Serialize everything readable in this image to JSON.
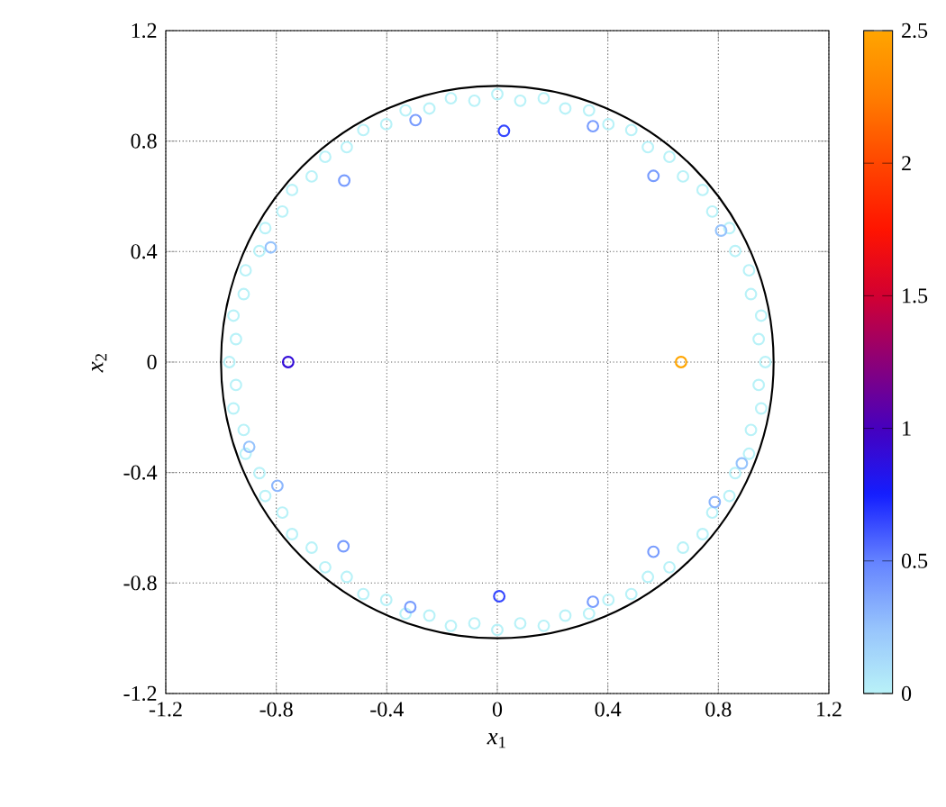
{
  "chart_data": {
    "type": "scatter",
    "xlabel": "*x*$_{1}$",
    "ylabel": "*x*$_{2}$",
    "xlim": [
      -1.2,
      1.2
    ],
    "ylim": [
      -1.2,
      1.2
    ],
    "xticks": [
      -1.2,
      -0.8,
      -0.4,
      0,
      0.4,
      0.8,
      1.2
    ],
    "yticks": [
      -1.2,
      -0.8,
      -0.4,
      0,
      0.4,
      0.8,
      1.2
    ],
    "clim": [
      0,
      2.5
    ],
    "cticks": [
      0,
      0.5,
      1,
      1.5,
      2,
      2.5
    ],
    "grid": true,
    "series": [
      {
        "marker": "circle",
        "x": [
          0.97,
          0.946,
          0.955,
          0.918,
          0.911,
          0.861,
          0.84,
          0.778,
          0.743,
          0.672,
          0.623,
          0.545,
          0.485,
          0.402,
          0.332,
          0.246,
          0.168,
          0.083,
          0,
          -0.083,
          -0.168,
          -0.246,
          -0.332,
          -0.402,
          -0.485,
          -0.545,
          -0.623,
          -0.672,
          -0.743,
          -0.778,
          -0.84,
          -0.861,
          -0.911,
          -0.918,
          -0.955,
          -0.946,
          -0.97,
          -0.946,
          -0.955,
          -0.918,
          -0.911,
          -0.861,
          -0.84,
          -0.778,
          -0.743,
          -0.672,
          -0.623,
          -0.545,
          -0.485,
          -0.402,
          -0.332,
          -0.246,
          -0.168,
          -0.083,
          0,
          0.083,
          0.168,
          0.246,
          0.332,
          0.402,
          0.485,
          0.545,
          0.623,
          0.672,
          0.743,
          0.778,
          0.84,
          0.861,
          0.911,
          0.918,
          0.955,
          0.946,
          -0.82,
          0.81,
          -0.898,
          -0.796,
          0.787,
          0.885,
          -0.554,
          -0.296,
          0.346,
          0.565,
          -0.557,
          -0.315,
          0.346,
          0.565,
          0.024,
          0.007,
          -0.757,
          0.665
        ],
        "values": [
          0,
          0.083,
          0.168,
          0.246,
          0.332,
          0.402,
          0.485,
          0.545,
          0.623,
          0.672,
          0.743,
          0.778,
          0.84,
          0.861,
          0.911,
          0.918,
          0.955,
          0.946,
          0.97,
          0.946,
          0.955,
          0.918,
          0.911,
          0.861,
          0.84,
          0.778,
          0.743,
          0.672,
          0.623,
          0.545,
          0.485,
          0.402,
          0.332,
          0.246,
          0.168,
          0.083,
          0,
          -0.083,
          -0.168,
          -0.246,
          -0.332,
          -0.402,
          -0.485,
          -0.545,
          -0.623,
          -0.672,
          -0.743,
          -0.778,
          -0.84,
          -0.861,
          -0.911,
          -0.918,
          -0.955,
          -0.946,
          -0.97,
          -0.946,
          -0.955,
          -0.918,
          -0.911,
          -0.861,
          -0.84,
          -0.778,
          -0.743,
          -0.672,
          -0.623,
          -0.545,
          -0.485,
          -0.402,
          -0.332,
          -0.246,
          -0.168,
          -0.083,
          0.415,
          0.476,
          -0.307,
          -0.448,
          -0.507,
          -0.367,
          0.657,
          0.876,
          0.854,
          0.674,
          -0.667,
          -0.887,
          -0.868,
          -0.687,
          0.837,
          -0.848,
          0,
          0
        ],
        "cvalues": [
          0,
          0,
          0,
          0,
          0,
          0,
          0,
          0,
          0,
          0,
          0,
          0,
          0,
          0,
          0,
          0,
          0,
          0,
          0,
          0,
          0,
          0,
          0,
          0,
          0,
          0,
          0,
          0,
          0,
          0,
          0,
          0,
          0,
          0,
          0,
          0,
          0,
          0,
          0,
          0,
          0,
          0,
          0,
          0,
          0,
          0,
          0,
          0,
          0,
          0,
          0,
          0,
          0,
          0,
          0,
          0,
          0,
          0,
          0,
          0,
          0,
          0,
          0,
          0,
          0,
          0,
          0,
          0,
          0,
          0,
          0,
          0,
          0.25,
          0.25,
          0.25,
          0.3,
          0.3,
          0.25,
          0.4,
          0.4,
          0.4,
          0.4,
          0.4,
          0.4,
          0.4,
          0.4,
          0.65,
          0.65,
          0.9,
          2.5
        ]
      }
    ]
  }
}
